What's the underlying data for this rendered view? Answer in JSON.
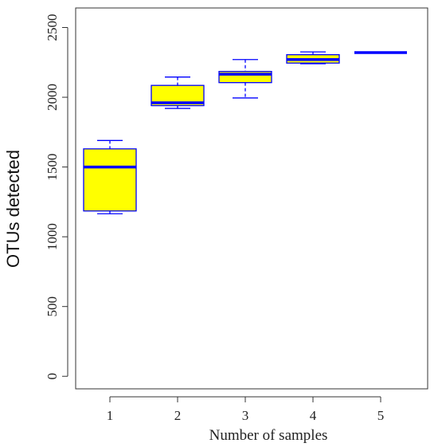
{
  "chart_data": {
    "type": "box",
    "xlabel": "Number of samples",
    "ylabel": "OTUs detected",
    "categories": [
      "1",
      "2",
      "3",
      "4",
      "5"
    ],
    "boxes": [
      {
        "category": "1",
        "whisker_low": 1165,
        "q1": 1185,
        "median": 1500,
        "q3": 1630,
        "whisker_high": 1690
      },
      {
        "category": "2",
        "whisker_low": 1920,
        "q1": 1940,
        "median": 1960,
        "q3": 2085,
        "whisker_high": 2145
      },
      {
        "category": "3",
        "whisker_low": 1995,
        "q1": 2105,
        "median": 2165,
        "q3": 2185,
        "whisker_high": 2270
      },
      {
        "category": "4",
        "whisker_low": 2240,
        "q1": 2245,
        "median": 2270,
        "q3": 2305,
        "whisker_high": 2325
      },
      {
        "category": "5",
        "whisker_low": 2320,
        "q1": 2320,
        "median": 2320,
        "q3": 2320,
        "whisker_high": 2320
      }
    ],
    "y_ticks": [
      0,
      500,
      1000,
      1500,
      2000,
      2500
    ],
    "ylim": [
      -90,
      2640
    ],
    "box_fill": "#ffff00",
    "line_color": "#0000ff",
    "grid": false
  }
}
